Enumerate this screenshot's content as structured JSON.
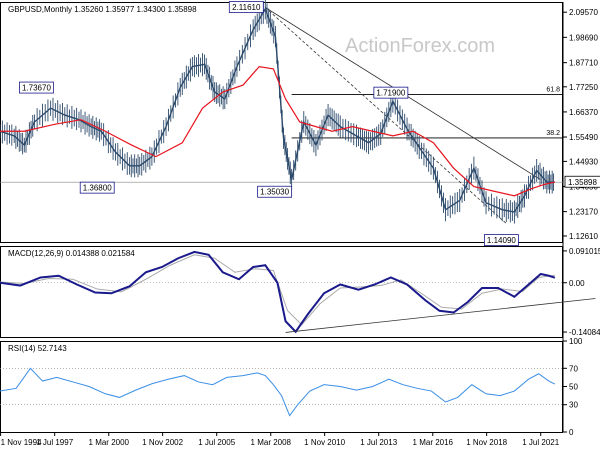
{
  "chart_data": [
    {
      "type": "line",
      "panel": "price",
      "title": "GBPUSD,Monthly  1.35260 1.35977 1.34300 1.35898",
      "watermark": "ActionForex.com",
      "y_axis_ticks": [
        "2.09570",
        "1.98690",
        "1.87710",
        "1.77250",
        "1.66370",
        "1.55490",
        "1.44930",
        "1.34050",
        "1.23170",
        "1.12610"
      ],
      "last_price_label": "1.35898",
      "ylim": [
        1.1,
        2.14
      ],
      "x_range": [
        1994.8,
        2022.6
      ],
      "x_tick_labels": [
        "1 Nov 1994",
        "1 Jul 1997",
        "1 Mar 2000",
        "1 Nov 2002",
        "1 Jul 2005",
        "1 Mar 2008",
        "1 Nov 2010",
        "1 Jul 2013",
        "1 Mar 2016",
        "1 Nov 2018",
        "1 Jul 2021"
      ],
      "x_tick_positions": [
        1994.83,
        1997.5,
        2000.17,
        2002.83,
        2005.5,
        2008.17,
        2010.83,
        2013.5,
        2016.17,
        2018.83,
        2021.5
      ],
      "series": [
        {
          "name": "",
          "x": [
            1994.8,
            1995.5,
            1996.0,
            1996.5,
            1997.3,
            1998.0,
            1998.7,
            1999.3,
            1999.8,
            2000.5,
            2001.2,
            2001.7,
            2002.3,
            2003.0,
            2003.7,
            2004.3,
            2004.9,
            2005.4,
            2005.9,
            2006.5,
            2007.3,
            2007.9,
            2008.4,
            2008.8,
            2009.2,
            2009.8,
            2010.4,
            2011.0,
            2011.6,
            2012.4,
            2013.0,
            2013.6,
            2014.2,
            2014.9,
            2015.5,
            2016.2,
            2016.8,
            2017.5,
            2018.2,
            2018.8,
            2019.6,
            2020.2,
            2020.7,
            2021.3,
            2021.8,
            2022.2
          ],
          "values": [
            1.58,
            1.56,
            1.52,
            1.62,
            1.68,
            1.65,
            1.63,
            1.6,
            1.58,
            1.49,
            1.43,
            1.43,
            1.47,
            1.6,
            1.77,
            1.86,
            1.87,
            1.75,
            1.72,
            1.86,
            2.02,
            2.11,
            1.99,
            1.55,
            1.37,
            1.62,
            1.52,
            1.65,
            1.6,
            1.56,
            1.53,
            1.57,
            1.71,
            1.59,
            1.51,
            1.42,
            1.24,
            1.28,
            1.42,
            1.27,
            1.24,
            1.23,
            1.3,
            1.41,
            1.36,
            1.35898
          ]
        },
        {
          "name": "",
          "x": [
            1994.8,
            1996.0,
            1997.5,
            1998.8,
            2000.0,
            2001.3,
            2002.5,
            2003.8,
            2004.8,
            2005.8,
            2006.8,
            2007.6,
            2008.3,
            2008.9,
            2009.6,
            2010.4,
            2011.2,
            2012.2,
            2013.2,
            2014.2,
            2015.2,
            2016.2,
            2017.2,
            2018.2,
            2019.2,
            2020.2,
            2021.0,
            2021.7,
            2022.2
          ],
          "values": [
            1.58,
            1.58,
            1.61,
            1.63,
            1.58,
            1.52,
            1.47,
            1.53,
            1.68,
            1.75,
            1.78,
            1.86,
            1.85,
            1.72,
            1.62,
            1.6,
            1.58,
            1.6,
            1.58,
            1.56,
            1.58,
            1.53,
            1.42,
            1.34,
            1.32,
            1.3,
            1.33,
            1.35,
            1.36
          ]
        }
      ],
      "annotations": [
        {
          "text": "1.73670",
          "x": 1996.6,
          "y": 1.7367
        },
        {
          "text": "1.36800",
          "x": 1999.6,
          "y": 1.368
        },
        {
          "text": "2.11610",
          "x": 2007.9,
          "y": 2.1161
        },
        {
          "text": "1.35030",
          "x": 2009.2,
          "y": 1.3503
        },
        {
          "text": "1.71900",
          "x": 2014.1,
          "y": 1.719
        },
        {
          "text": "1.14090",
          "x": 2020.2,
          "y": 1.1409
        }
      ],
      "fib_levels": [
        {
          "label": "61.8",
          "y": 1.739,
          "from_x": 2009.2
        },
        {
          "label": "38.2",
          "y": 1.551,
          "from_x": 2009.2
        }
      ],
      "trend_lines": [
        {
          "style": "solid",
          "x1": 2007.9,
          "y1": 2.1161,
          "x2": 2021.5,
          "y2": 1.37
        },
        {
          "style": "dashed",
          "x1": 2007.9,
          "y1": 2.1161,
          "x2": 2019.8,
          "y2": 1.18
        }
      ]
    },
    {
      "type": "line",
      "panel": "macd",
      "title": "MACD(12,26,9) 0.014388 0.021584",
      "y_axis_ticks": [
        "0.091015",
        "0.00",
        "-0.140843"
      ],
      "ylim": [
        -0.155,
        0.105
      ],
      "series": [
        {
          "name": "",
          "x": [
            1994.8,
            1995.8,
            1996.8,
            1997.7,
            1998.6,
            1999.5,
            2000.3,
            2001.2,
            2002.0,
            2002.8,
            2003.6,
            2004.4,
            2005.1,
            2005.8,
            2006.6,
            2007.3,
            2007.9,
            2008.5,
            2008.9,
            2009.4,
            2010.0,
            2010.8,
            2011.6,
            2012.5,
            2013.3,
            2014.1,
            2014.9,
            2015.8,
            2016.5,
            2017.2,
            2017.9,
            2018.6,
            2019.4,
            2020.2,
            2020.9,
            2021.5,
            2021.9,
            2022.2
          ],
          "values": [
            0.0,
            -0.008,
            0.015,
            0.02,
            -0.005,
            -0.028,
            -0.03,
            -0.01,
            0.03,
            0.045,
            0.07,
            0.088,
            0.08,
            0.03,
            0.01,
            0.045,
            0.05,
            0.0,
            -0.11,
            -0.14,
            -0.09,
            -0.03,
            -0.005,
            -0.02,
            -0.005,
            0.015,
            -0.005,
            -0.05,
            -0.08,
            -0.085,
            -0.055,
            -0.015,
            -0.015,
            -0.04,
            -0.005,
            0.025,
            0.02,
            0.014388
          ]
        },
        {
          "name": "",
          "x": [
            1994.8,
            1996.0,
            1997.2,
            1998.4,
            1999.6,
            2000.8,
            2002.0,
            2003.2,
            2004.4,
            2005.4,
            2006.4,
            2007.4,
            2008.3,
            2009.0,
            2009.7,
            2010.6,
            2011.6,
            2012.6,
            2013.6,
            2014.6,
            2015.6,
            2016.6,
            2017.6,
            2018.6,
            2019.6,
            2020.6,
            2021.4,
            2022.2
          ],
          "values": [
            0.002,
            -0.002,
            0.012,
            0.01,
            -0.018,
            -0.026,
            0.01,
            0.05,
            0.08,
            0.07,
            0.03,
            0.04,
            0.035,
            -0.08,
            -0.12,
            -0.06,
            -0.015,
            -0.012,
            -0.008,
            0.008,
            -0.03,
            -0.07,
            -0.075,
            -0.03,
            -0.018,
            -0.025,
            0.015,
            0.021584
          ]
        }
      ],
      "trend_lines": [
        {
          "style": "solid",
          "x1": 2008.9,
          "y1": -0.142,
          "x2": 2024.2,
          "y2": -0.045
        }
      ]
    },
    {
      "type": "line",
      "panel": "rsi",
      "title": "RSI(14) 52.7143",
      "y_axis_ticks": [
        "100",
        "70",
        "50",
        "30",
        "0"
      ],
      "ylim": [
        0,
        100
      ],
      "reference_lines": [
        70,
        30
      ],
      "series": [
        {
          "name": "",
          "x": [
            1994.8,
            1995.6,
            1996.3,
            1996.9,
            1997.6,
            1998.4,
            1999.2,
            2000.0,
            2000.7,
            2001.5,
            2002.3,
            2003.1,
            2003.9,
            2004.6,
            2005.3,
            2006.0,
            2006.8,
            2007.5,
            2007.9,
            2008.3,
            2008.7,
            2009.1,
            2009.5,
            2010.1,
            2010.8,
            2011.6,
            2012.4,
            2013.2,
            2014.0,
            2014.7,
            2015.4,
            2016.1,
            2016.8,
            2017.4,
            2018.1,
            2018.8,
            2019.5,
            2020.2,
            2020.9,
            2021.4,
            2021.9,
            2022.2
          ],
          "values": [
            45,
            48,
            70,
            56,
            60,
            55,
            50,
            42,
            38,
            46,
            53,
            58,
            62,
            55,
            52,
            60,
            62,
            65,
            62,
            52,
            40,
            18,
            30,
            45,
            52,
            50,
            46,
            50,
            58,
            52,
            48,
            45,
            33,
            38,
            52,
            42,
            40,
            45,
            58,
            64,
            56,
            52.7143
          ]
        }
      ]
    }
  ]
}
